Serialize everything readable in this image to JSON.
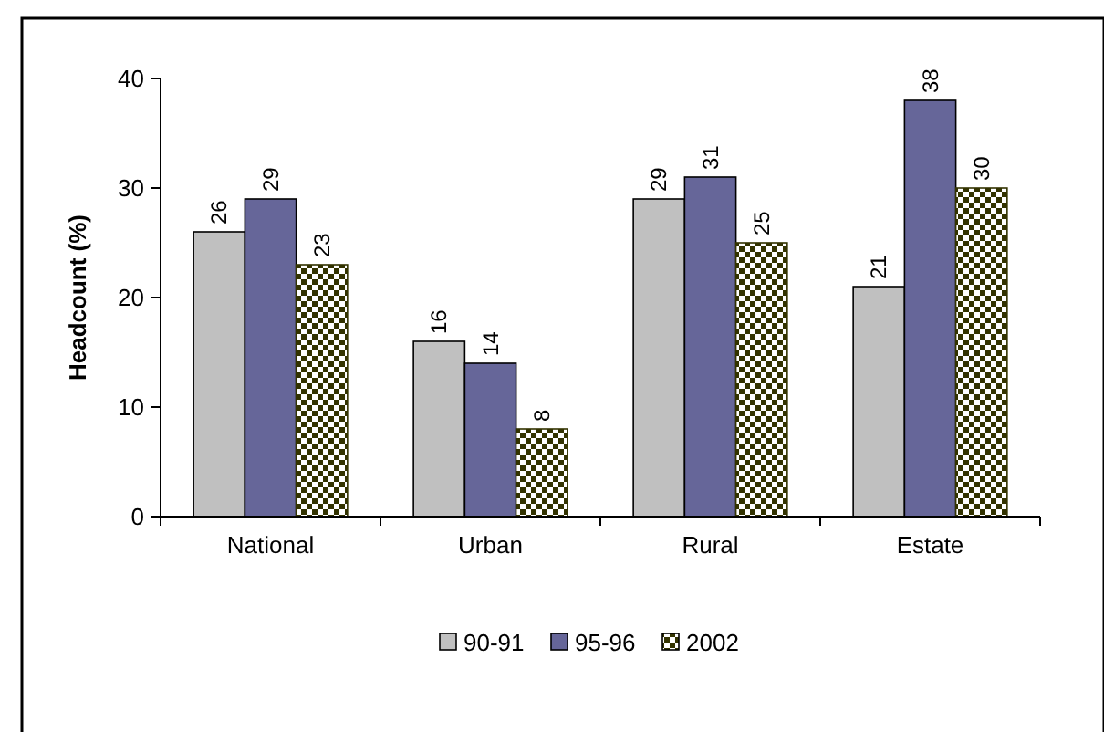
{
  "chart_data": {
    "type": "bar",
    "ylabel": "Headcount (%)",
    "categories": [
      "National",
      "Urban",
      "Rural",
      "Estate"
    ],
    "series": [
      {
        "name": "90-91",
        "color": "#c0c0c0",
        "values": [
          26,
          16,
          29,
          21
        ]
      },
      {
        "name": "95-96",
        "color": "#666699",
        "values": [
          29,
          14,
          31,
          38
        ]
      },
      {
        "name": "2002",
        "color": "#333300",
        "values": [
          23,
          8,
          25,
          30
        ]
      }
    ],
    "ylim": [
      0,
      40
    ],
    "yticks": [
      0,
      10,
      20,
      30,
      40
    ],
    "data_labels": true,
    "legend": "bottom",
    "grid": false
  }
}
